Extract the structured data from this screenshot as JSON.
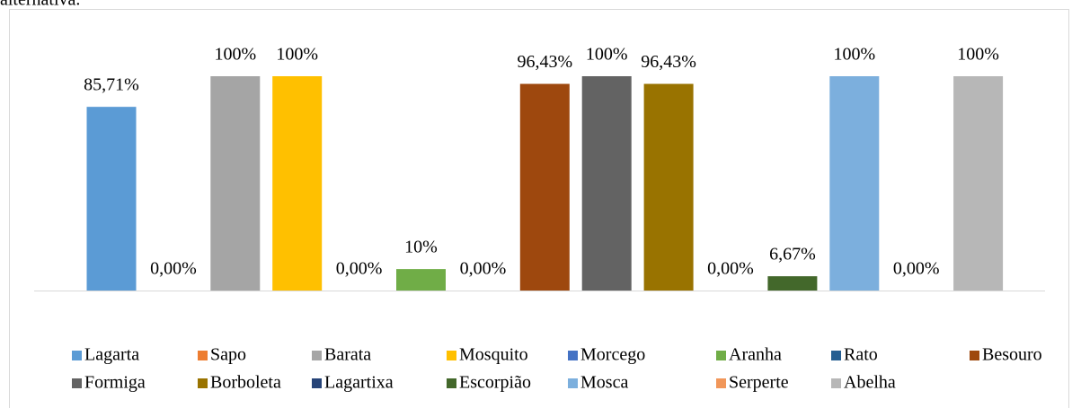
{
  "caption": "alternativa.",
  "chart_data": {
    "type": "bar",
    "series": [
      {
        "name": "Lagarta",
        "color": "#5b9bd5",
        "values": [
          85.71
        ],
        "value_labels": [
          "85,71%"
        ]
      },
      {
        "name": "Sapo",
        "color": "#ed7d31",
        "values": [
          0
        ],
        "value_labels": [
          "0,00%"
        ]
      },
      {
        "name": "Barata",
        "color": "#a5a5a5",
        "values": [
          100
        ],
        "value_labels": [
          "100%"
        ]
      },
      {
        "name": "Mosquito",
        "color": "#ffc000",
        "values": [
          100
        ],
        "value_labels": [
          "100%"
        ]
      },
      {
        "name": "Morcego",
        "color": "#4472c4",
        "values": [
          0
        ],
        "value_labels": [
          "0,00%"
        ]
      },
      {
        "name": "Aranha",
        "color": "#70ad47",
        "values": [
          10
        ],
        "value_labels": [
          "10%"
        ]
      },
      {
        "name": "Rato",
        "color": "#255e91",
        "values": [
          0
        ],
        "value_labels": [
          "0,00%"
        ]
      },
      {
        "name": "Besouro",
        "color": "#9e480e",
        "values": [
          96.43
        ],
        "value_labels": [
          "96,43%"
        ]
      },
      {
        "name": "Formiga",
        "color": "#636363",
        "values": [
          100
        ],
        "value_labels": [
          "100%"
        ]
      },
      {
        "name": "Borboleta",
        "color": "#997300",
        "values": [
          96.43
        ],
        "value_labels": [
          "96,43%"
        ]
      },
      {
        "name": "Lagartixa",
        "color": "#264478",
        "values": [
          0
        ],
        "value_labels": [
          "0,00%"
        ]
      },
      {
        "name": "Escorpião",
        "color": "#43682b",
        "values": [
          6.67
        ],
        "value_labels": [
          "6,67%"
        ]
      },
      {
        "name": "Mosca",
        "color": "#7cafdd",
        "values": [
          100
        ],
        "value_labels": [
          "100%"
        ]
      },
      {
        "name": "Serperte",
        "color": "#f1975a",
        "values": [
          0
        ],
        "value_labels": [
          "0,00%"
        ]
      },
      {
        "name": "Abelha",
        "color": "#b7b7b7",
        "values": [
          100
        ],
        "value_labels": [
          "100%"
        ]
      }
    ],
    "legend": "bottom"
  }
}
